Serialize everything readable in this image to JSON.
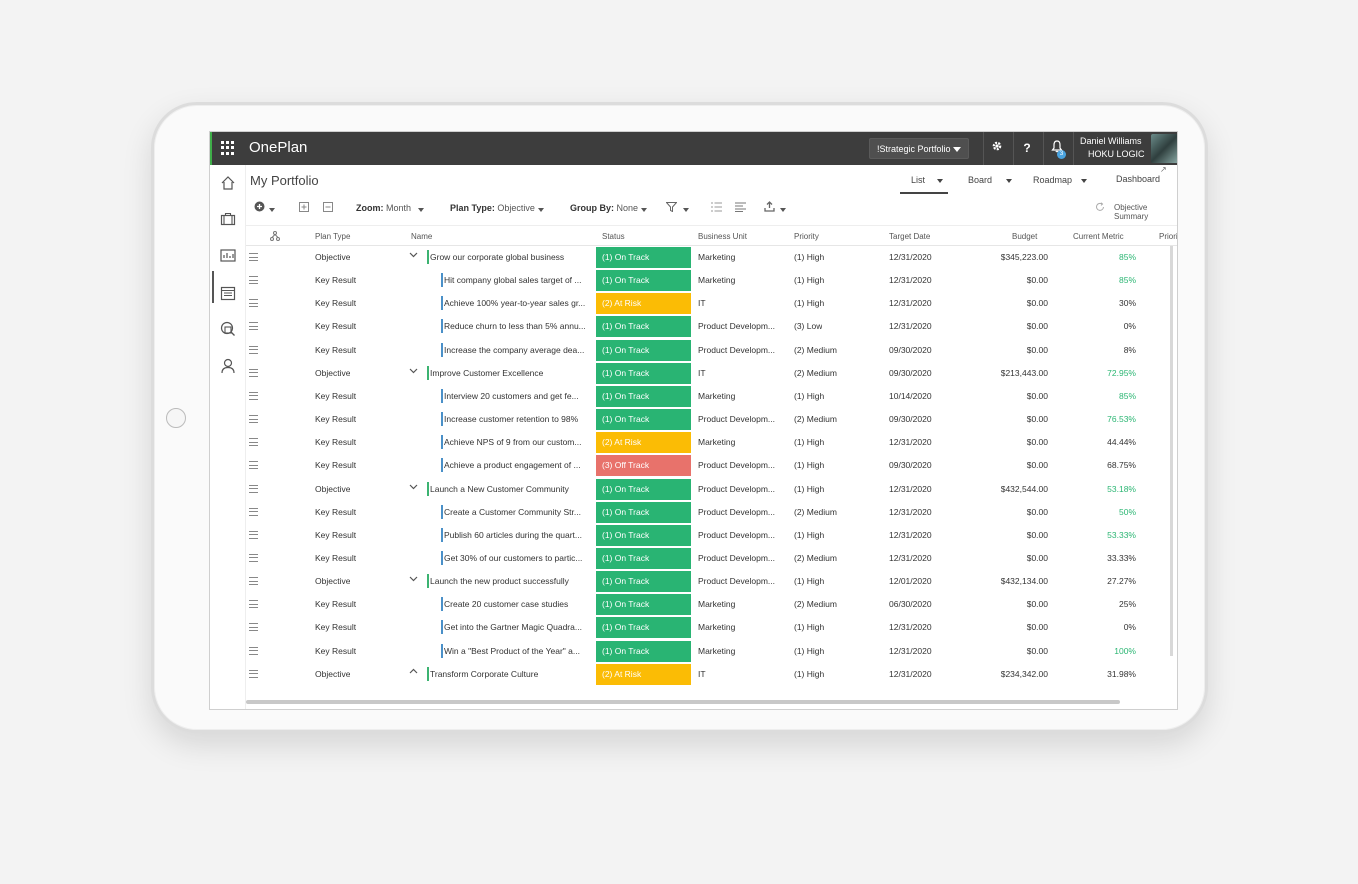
{
  "app": {
    "name": "OnePlan"
  },
  "topbar": {
    "portfolio": "!Strategic Portfolio",
    "settings_icon": "gear-icon",
    "help_label": "?",
    "notifications_icon": "bell-icon",
    "notification_count": "3",
    "user_name": "Daniel Williams",
    "user_org": "HOKU LOGIC"
  },
  "page": {
    "title": "My Portfolio"
  },
  "views": {
    "list": "List",
    "board": "Board",
    "roadmap": "Roadmap",
    "dashboard": "Dashboard"
  },
  "toolbar": {
    "zoom_label": "Zoom:",
    "zoom_value": "Month",
    "plan_type_label": "Plan Type:",
    "plan_type_value": "Objective",
    "group_by_label": "Group By:",
    "group_by_value": "None",
    "summary": "Objective Summary"
  },
  "columns": {
    "plan_type": "Plan Type",
    "name": "Name",
    "status": "Status",
    "business_unit": "Business Unit",
    "priority": "Priority",
    "target_date": "Target Date",
    "budget": "Budget",
    "current_metric": "Current Metric",
    "priority2": "Priorit"
  },
  "colors": {
    "on_track": "#29b473",
    "at_risk": "#fbbc05",
    "off_track": "#e8726b",
    "objective_bar": "#3cb371",
    "kr_bar": "#4a90c8"
  },
  "rows": [
    {
      "type": "Objective",
      "name": "Grow our corporate global business",
      "status": "(1) On Track",
      "bu": "Marketing",
      "priority": "(1) High",
      "date": "12/31/2020",
      "budget": "$345,223.00",
      "metric": "85%"
    },
    {
      "type": "Key Result",
      "name": "Hit company global sales target of ...",
      "status": "(1) On Track",
      "bu": "Marketing",
      "priority": "(1) High",
      "date": "12/31/2020",
      "budget": "$0.00",
      "metric": "85%"
    },
    {
      "type": "Key Result",
      "name": "Achieve 100% year-to-year sales gr...",
      "status": "(2) At Risk",
      "bu": "IT",
      "priority": "(1) High",
      "date": "12/31/2020",
      "budget": "$0.00",
      "metric": "30%"
    },
    {
      "type": "Key Result",
      "name": "Reduce churn to less than 5% annu...",
      "status": "(1) On Track",
      "bu": "Product Developm...",
      "priority": "(3) Low",
      "date": "12/31/2020",
      "budget": "$0.00",
      "metric": "0%"
    },
    {
      "type": "Key Result",
      "name": "Increase the company average dea...",
      "status": "(1) On Track",
      "bu": "Product Developm...",
      "priority": "(2) Medium",
      "date": "09/30/2020",
      "budget": "$0.00",
      "metric": "8%"
    },
    {
      "type": "Objective",
      "name": "Improve Customer Excellence",
      "status": "(1) On Track",
      "bu": "IT",
      "priority": "(2) Medium",
      "date": "09/30/2020",
      "budget": "$213,443.00",
      "metric": "72.95%"
    },
    {
      "type": "Key Result",
      "name": "Interview 20 customers and get fe...",
      "status": "(1) On Track",
      "bu": "Marketing",
      "priority": "(1) High",
      "date": "10/14/2020",
      "budget": "$0.00",
      "metric": "85%"
    },
    {
      "type": "Key Result",
      "name": "Increase customer retention to 98%",
      "status": "(1) On Track",
      "bu": "Product Developm...",
      "priority": "(2) Medium",
      "date": "09/30/2020",
      "budget": "$0.00",
      "metric": "76.53%"
    },
    {
      "type": "Key Result",
      "name": "Achieve NPS of 9 from our custom...",
      "status": "(2) At Risk",
      "bu": "Marketing",
      "priority": "(1) High",
      "date": "12/31/2020",
      "budget": "$0.00",
      "metric": "44.44%"
    },
    {
      "type": "Key Result",
      "name": "Achieve a product engagement of ...",
      "status": "(3) Off Track",
      "bu": "Product Developm...",
      "priority": "(1) High",
      "date": "09/30/2020",
      "budget": "$0.00",
      "metric": "68.75%"
    },
    {
      "type": "Objective",
      "name": "Launch a New Customer Community",
      "status": "(1) On Track",
      "bu": "Product Developm...",
      "priority": "(1) High",
      "date": "12/31/2020",
      "budget": "$432,544.00",
      "metric": "53.18%"
    },
    {
      "type": "Key Result",
      "name": "Create a Customer Community Str...",
      "status": "(1) On Track",
      "bu": "Product Developm...",
      "priority": "(2) Medium",
      "date": "12/31/2020",
      "budget": "$0.00",
      "metric": "50%"
    },
    {
      "type": "Key Result",
      "name": "Publish 60 articles during the quart...",
      "status": "(1) On Track",
      "bu": "Product Developm...",
      "priority": "(1) High",
      "date": "12/31/2020",
      "budget": "$0.00",
      "metric": "53.33%"
    },
    {
      "type": "Key Result",
      "name": "Get 30% of our customers to partic...",
      "status": "(1) On Track",
      "bu": "Product Developm...",
      "priority": "(2) Medium",
      "date": "12/31/2020",
      "budget": "$0.00",
      "metric": "33.33%"
    },
    {
      "type": "Objective",
      "name": "Launch the new product successfully",
      "status": "(1) On Track",
      "bu": "Product Developm...",
      "priority": "(1) High",
      "date": "12/01/2020",
      "budget": "$432,134.00",
      "metric": "27.27%"
    },
    {
      "type": "Key Result",
      "name": "Create 20 customer case studies",
      "status": "(1) On Track",
      "bu": "Marketing",
      "priority": "(2) Medium",
      "date": "06/30/2020",
      "budget": "$0.00",
      "metric": "25%"
    },
    {
      "type": "Key Result",
      "name": "Get into the Gartner Magic Quadra...",
      "status": "(1) On Track",
      "bu": "Marketing",
      "priority": "(1) High",
      "date": "12/31/2020",
      "budget": "$0.00",
      "metric": "0%"
    },
    {
      "type": "Key Result",
      "name": "Win a \"Best Product of the Year\" a...",
      "status": "(1) On Track",
      "bu": "Marketing",
      "priority": "(1) High",
      "date": "12/31/2020",
      "budget": "$0.00",
      "metric": "100%"
    },
    {
      "type": "Objective",
      "name": "Transform Corporate Culture",
      "status": "(2) At Risk",
      "bu": "IT",
      "priority": "(1) High",
      "date": "12/31/2020",
      "budget": "$234,342.00",
      "metric": "31.98%"
    }
  ]
}
